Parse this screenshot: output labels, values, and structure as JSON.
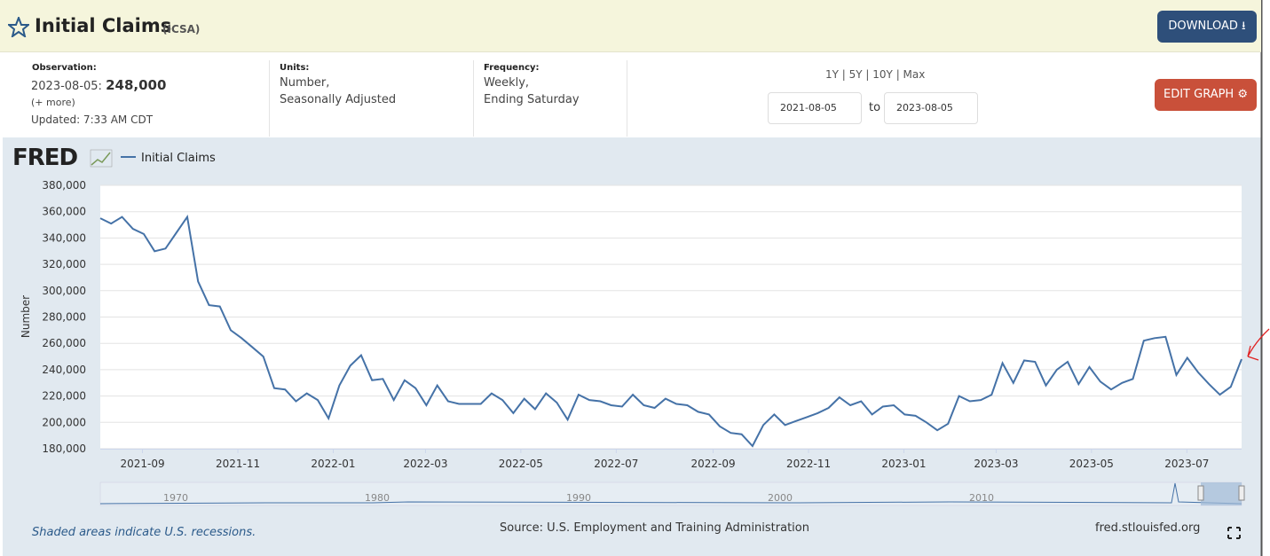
{
  "header": {
    "title": "Initial Claims",
    "code": "(ICSA)",
    "download": "DOWNLOAD"
  },
  "observation": {
    "label": "Observation:",
    "date": "2023-08-05:",
    "value": "248,000",
    "more": "(+ more)",
    "updated": "Updated: 7:33 AM CDT"
  },
  "units": {
    "label": "Units:",
    "lines": [
      "Number,",
      "Seasonally Adjusted"
    ]
  },
  "frequency": {
    "label": "Frequency:",
    "lines": [
      "Weekly,",
      "Ending Saturday"
    ]
  },
  "range": {
    "presets": "1Y | 5Y | 10Y | Max",
    "to": "to",
    "edit": "EDIT GRAPH"
  },
  "chart_data": {
    "type": "line",
    "logo": "FRED",
    "ylabel": "Number",
    "xlim": [
      "2021-08-05",
      "2023-08-05"
    ],
    "xticks": [
      "2021-09",
      "2021-11",
      "2022-01",
      "2022-03",
      "2022-05",
      "2022-07",
      "2022-09",
      "2022-11",
      "2023-01",
      "2023-03",
      "2023-05",
      "2023-07"
    ],
    "ylim": [
      180000,
      380000
    ],
    "yticks": [
      {
        "value": 180000,
        "label": "180,000"
      },
      {
        "value": 200000,
        "label": "200,000"
      },
      {
        "value": 220000,
        "label": "220,000"
      },
      {
        "value": 240000,
        "label": "240,000"
      },
      {
        "value": 260000,
        "label": "260,000"
      },
      {
        "value": 280000,
        "label": "280,000"
      },
      {
        "value": 300000,
        "label": "300,000"
      },
      {
        "value": 320000,
        "label": "320,000"
      },
      {
        "value": 340000,
        "label": "340,000"
      },
      {
        "value": 360000,
        "label": "360,000"
      },
      {
        "value": 380000,
        "label": "380,000"
      }
    ],
    "grid": true,
    "series": [
      {
        "name": "Initial Claims",
        "color": "#4572a7",
        "values": [
          355000,
          351000,
          356000,
          347000,
          343000,
          330000,
          332000,
          344000,
          356000,
          307000,
          289000,
          288000,
          270000,
          264000,
          257000,
          250000,
          226000,
          225000,
          216000,
          222000,
          217000,
          203000,
          228000,
          243000,
          251000,
          232000,
          233000,
          217000,
          232000,
          226000,
          213000,
          228000,
          216000,
          214000,
          214000,
          214000,
          222000,
          217000,
          207000,
          218000,
          210000,
          222000,
          215000,
          202000,
          221000,
          217000,
          216000,
          213000,
          212000,
          221000,
          213000,
          211000,
          218000,
          214000,
          213000,
          208000,
          206000,
          197000,
          192000,
          191000,
          182000,
          198000,
          206000,
          198000,
          201000,
          204000,
          207000,
          211000,
          219000,
          213000,
          216000,
          206000,
          212000,
          213000,
          206000,
          205000,
          200000,
          194000,
          199000,
          220000,
          216000,
          217000,
          221000,
          245000,
          230000,
          247000,
          246000,
          228000,
          240000,
          246000,
          229000,
          242000,
          231000,
          225000,
          230000,
          233000,
          262000,
          264000,
          265000,
          236000,
          249000,
          238000,
          229000,
          221000,
          227000,
          248000
        ]
      }
    ],
    "navigator": [
      "1970",
      "1980",
      "1990",
      "2000",
      "2010"
    ]
  },
  "footer": {
    "recessions": "Shaded areas indicate U.S. recessions.",
    "source": "Source: U.S. Employment and Training Administration",
    "site": "fred.stlouisfed.org"
  }
}
